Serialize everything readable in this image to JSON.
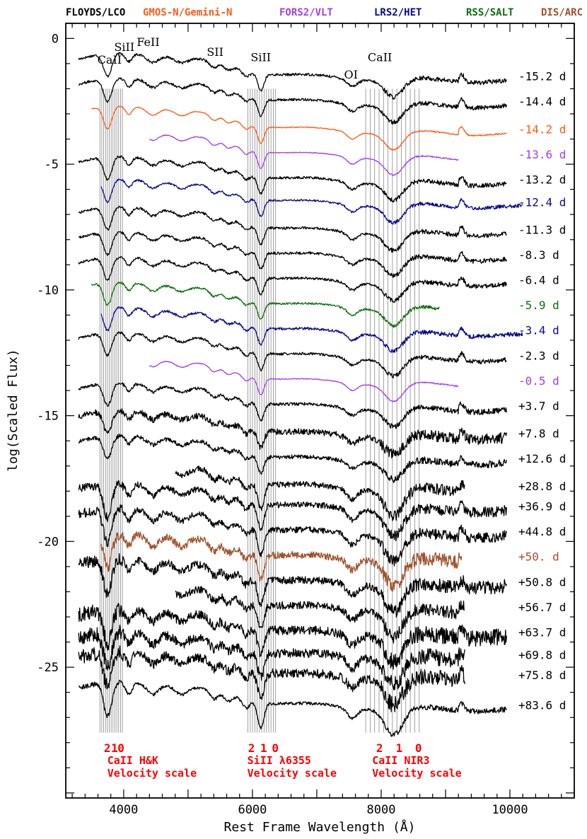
{
  "chart_data": {
    "type": "line",
    "xlabel": "Rest Frame Wavelength (Å)",
    "ylabel": "log(Scaled Flux)",
    "xlim": [
      3100,
      11000
    ],
    "ylim": [
      -30.2,
      0.6
    ],
    "x_ticks": [
      4000,
      6000,
      8000,
      10000
    ],
    "y_ticks": [
      0,
      -5,
      -10,
      -15,
      -20,
      -25
    ],
    "instruments": [
      {
        "name": "FLOYDS/LCO",
        "color": "#000000"
      },
      {
        "name": "GMOS-N/Gemini-N",
        "color": "#ff5a14"
      },
      {
        "name": "FORS2/VLT",
        "color": "#a040ee"
      },
      {
        "name": "LRS2/HET",
        "color": "#0a0a8c"
      },
      {
        "name": "RSS/SALT",
        "color": "#0e6e0e"
      },
      {
        "name": "DIS/ARC",
        "color": "#a0522d"
      }
    ],
    "line_ids": [
      {
        "label": "CaII",
        "x": 3780,
        "y": -1.0
      },
      {
        "label": "SiII",
        "x": 4010,
        "y": -0.5
      },
      {
        "label": "FeII",
        "x": 4380,
        "y": -0.3
      },
      {
        "label": "SII",
        "x": 5420,
        "y": -0.7
      },
      {
        "label": "SiII",
        "x": 6130,
        "y": -0.9
      },
      {
        "label": "OI",
        "x": 7530,
        "y": -1.6
      },
      {
        "label": "CaII",
        "x": 7980,
        "y": -0.9
      }
    ],
    "velocity_scales": [
      {
        "label1": "CaII H&K",
        "label2": "Velocity scale",
        "marks": [
          "2",
          "1",
          "0"
        ],
        "mark_x": [
          3745,
          3858,
          3958
        ],
        "lines_x0": 3630,
        "lines_x1": 3980,
        "text_x": 3745
      },
      {
        "label1": "SiII λ6355",
        "label2": "Velocity scale",
        "marks": [
          "2",
          "1",
          "0"
        ],
        "mark_x": [
          5985,
          6175,
          6355
        ],
        "lines_x0": 5930,
        "lines_x1": 6360,
        "text_x": 5920
      },
      {
        "label1": "CaII NIR3",
        "label2": "Velocity scale",
        "marks": [
          "2",
          "1",
          "0"
        ],
        "mark_x": [
          7975,
          8280,
          8580
        ],
        "lines_x0": 7760,
        "lines_x1": 8590,
        "text_x": 7860
      }
    ],
    "series": [
      {
        "name": "-15.2 d",
        "instrument": "FLOYDS/LCO",
        "x_range": [
          3300,
          9950
        ],
        "offset": -1.5,
        "noise": 0.05,
        "color": "#000000"
      },
      {
        "name": "-14.4 d",
        "instrument": "FLOYDS/LCO",
        "x_range": [
          3300,
          9950
        ],
        "offset": -2.5,
        "noise": 0.05,
        "color": "#000000"
      },
      {
        "name": "-14.2 d",
        "instrument": "GMOS-N/Gemini-N",
        "x_range": [
          3500,
          9950
        ],
        "offset": -3.6,
        "noise": 0.015,
        "color": "#ff5a14"
      },
      {
        "name": "-13.6 d",
        "instrument": "FORS2/VLT",
        "x_range": [
          4400,
          9200
        ],
        "offset": -4.6,
        "noise": 0.015,
        "color": "#a040ee"
      },
      {
        "name": "-13.2 d",
        "instrument": "FLOYDS/LCO",
        "x_range": [
          3300,
          9950
        ],
        "offset": -5.6,
        "noise": 0.05,
        "color": "#000000"
      },
      {
        "name": "-12.4 d",
        "instrument": "LRS2/HET",
        "x_range": [
          3650,
          10200
        ],
        "offset": -6.5,
        "noise": 0.04,
        "color": "#0a0a8c"
      },
      {
        "name": "-11.3 d",
        "instrument": "FLOYDS/LCO",
        "x_range": [
          3300,
          9950
        ],
        "offset": -7.6,
        "noise": 0.05,
        "color": "#000000"
      },
      {
        "name": "-8.3 d",
        "instrument": "FLOYDS/LCO",
        "x_range": [
          3300,
          9950
        ],
        "offset": -8.6,
        "noise": 0.05,
        "color": "#000000"
      },
      {
        "name": "-6.4 d",
        "instrument": "FLOYDS/LCO",
        "x_range": [
          3300,
          9950
        ],
        "offset": -9.6,
        "noise": 0.05,
        "color": "#000000"
      },
      {
        "name": "-5.9 d",
        "instrument": "RSS/SALT",
        "x_range": [
          3500,
          8900
        ],
        "offset": -10.6,
        "noise": 0.04,
        "color": "#0e6e0e"
      },
      {
        "name": "-3.4 d",
        "instrument": "LRS2/HET",
        "x_range": [
          3650,
          10200
        ],
        "offset": -11.6,
        "noise": 0.05,
        "color": "#0a0a8c"
      },
      {
        "name": "-2.3 d",
        "instrument": "FLOYDS/LCO",
        "x_range": [
          3300,
          9950
        ],
        "offset": -12.6,
        "noise": 0.05,
        "color": "#000000"
      },
      {
        "name": "-0.5 d",
        "instrument": "FORS2/VLT",
        "x_range": [
          4400,
          9200
        ],
        "offset": -13.6,
        "noise": 0.015,
        "color": "#a040ee"
      },
      {
        "name": "+3.7 d",
        "instrument": "FLOYDS/LCO",
        "x_range": [
          3300,
          9950
        ],
        "offset": -14.6,
        "noise": 0.06,
        "color": "#000000"
      },
      {
        "name": "+7.8 d",
        "instrument": "FLOYDS/LCO",
        "x_range": [
          3300,
          9950
        ],
        "offset": -15.7,
        "noise": 0.12,
        "color": "#000000"
      },
      {
        "name": "+12.6 d",
        "instrument": "FLOYDS/LCO",
        "x_range": [
          3300,
          9950
        ],
        "offset": -16.7,
        "noise": 0.08,
        "color": "#000000"
      },
      {
        "name": "+28.8 d",
        "instrument": "FLOYDS/LCO",
        "x_range": [
          4800,
          9300
        ],
        "offset": -17.8,
        "noise": 0.12,
        "color": "#000000"
      },
      {
        "name": "+36.9 d",
        "instrument": "FLOYDS/LCO",
        "x_range": [
          3300,
          9950
        ],
        "offset": -18.6,
        "noise": 0.12,
        "color": "#000000"
      },
      {
        "name": "+44.8 d",
        "instrument": "FLOYDS/LCO",
        "x_range": [
          3300,
          9950
        ],
        "offset": -19.6,
        "noise": 0.12,
        "color": "#000000"
      },
      {
        "name": "+50. d",
        "instrument": "DIS/ARC",
        "x_range": [
          3650,
          9250
        ],
        "offset": -20.6,
        "noise": 0.15,
        "color": "#a0522d"
      },
      {
        "name": "+50.8 d",
        "instrument": "FLOYDS/LCO",
        "x_range": [
          3300,
          9950
        ],
        "offset": -21.6,
        "noise": 0.15,
        "color": "#000000"
      },
      {
        "name": "+56.7 d",
        "instrument": "FLOYDS/LCO",
        "x_range": [
          4800,
          9300
        ],
        "offset": -22.6,
        "noise": 0.15,
        "color": "#000000"
      },
      {
        "name": "+63.7 d",
        "instrument": "FLOYDS/LCO",
        "x_range": [
          3300,
          9950
        ],
        "offset": -23.6,
        "noise": 0.18,
        "color": "#000000"
      },
      {
        "name": "+69.8 d",
        "instrument": "FLOYDS/LCO",
        "x_range": [
          3300,
          9300
        ],
        "offset": -24.5,
        "noise": 0.18,
        "color": "#000000"
      },
      {
        "name": "+75.8 d",
        "instrument": "FLOYDS/LCO",
        "x_range": [
          3300,
          9300
        ],
        "offset": -25.3,
        "noise": 0.18,
        "color": "#000000"
      },
      {
        "name": "+83.6 d",
        "instrument": "FLOYDS/LCO",
        "x_range": [
          3300,
          9950
        ],
        "offset": -26.5,
        "noise": 0.06,
        "color": "#000000"
      }
    ]
  }
}
